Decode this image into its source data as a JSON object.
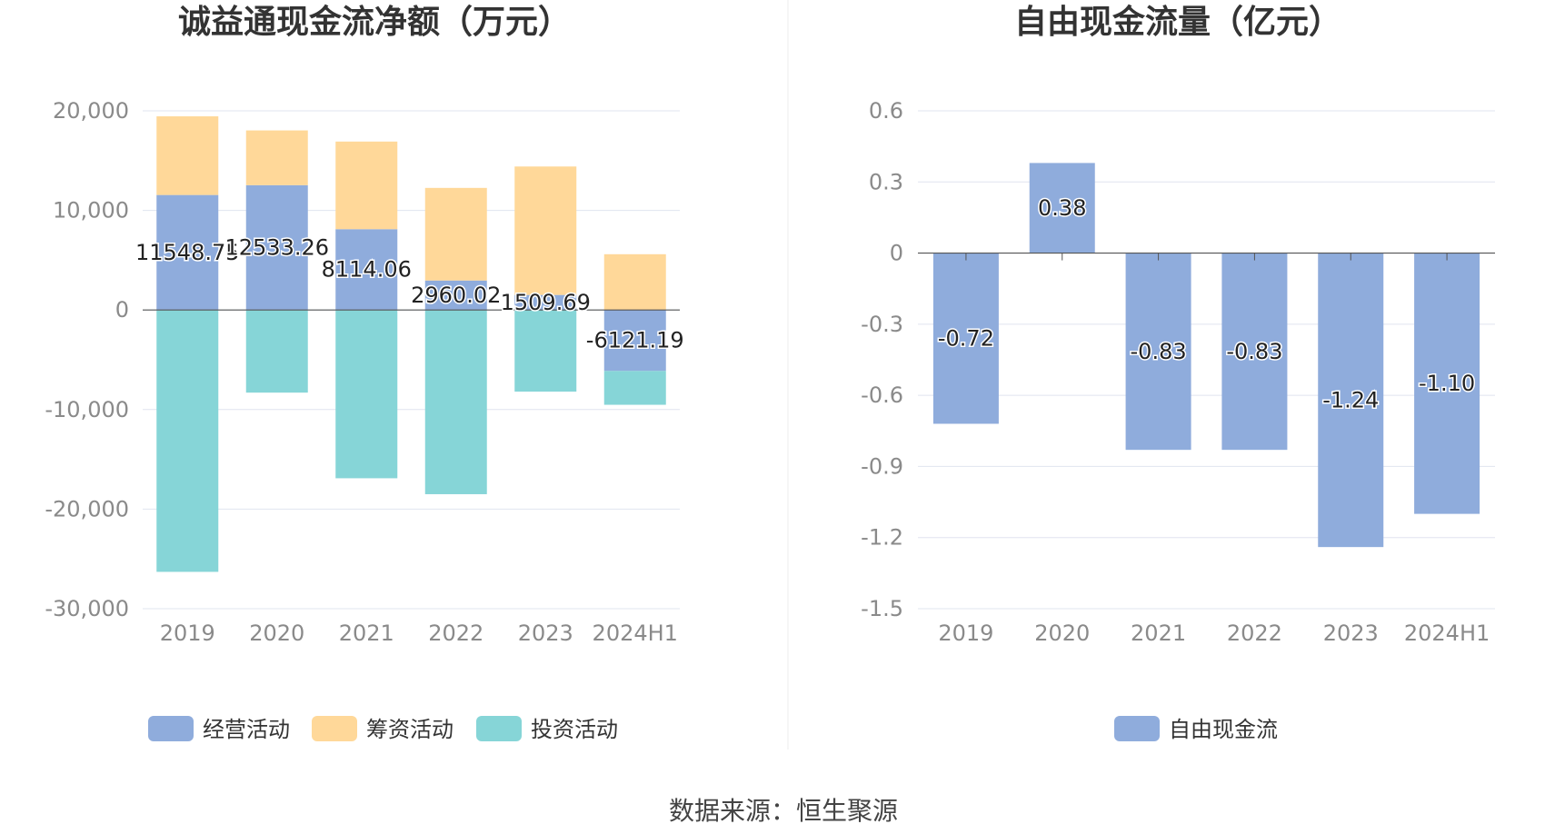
{
  "source_text": "数据来源：恒生聚源",
  "colors": {
    "operating": "#8facdc",
    "financing": "#ffd899",
    "investing": "#86d5d7",
    "fcf": "#8facdc",
    "grid": "#e0e4ef",
    "axis": "#555555"
  },
  "chart_data": [
    {
      "type": "bar",
      "stacked": true,
      "title": "诚益通现金流净额（万元）",
      "categories": [
        "2019",
        "2020",
        "2021",
        "2022",
        "2023",
        "2024H1"
      ],
      "ylim": [
        -30000,
        20000
      ],
      "yticks": [
        20000,
        10000,
        0,
        -10000,
        -20000,
        -30000
      ],
      "ytick_labels": [
        "20,000",
        "10,000",
        "0",
        "-10,000",
        "-20,000",
        "-30,000"
      ],
      "series": [
        {
          "name": "经营活动",
          "key": "operating",
          "values": [
            11548.75,
            12533.26,
            8114.06,
            2960.02,
            1509.69,
            -6121.19
          ]
        },
        {
          "name": "筹资活动",
          "key": "financing",
          "values": [
            7900,
            5500,
            8800,
            9300,
            12900,
            5600
          ]
        },
        {
          "name": "投资活动",
          "key": "investing",
          "values": [
            -26300,
            -8300,
            -16900,
            -18500,
            -8200,
            -3400
          ]
        }
      ],
      "data_labels": [
        "11548.75",
        "12533.26",
        "8114.06",
        "2960.02",
        "1509.69",
        "-6121.19"
      ],
      "legend": [
        {
          "name": "经营活动",
          "key": "operating"
        },
        {
          "name": "筹资活动",
          "key": "financing"
        },
        {
          "name": "投资活动",
          "key": "investing"
        }
      ],
      "legend_position": "bottom"
    },
    {
      "type": "bar",
      "title": "自由现金流量（亿元）",
      "categories": [
        "2019",
        "2020",
        "2021",
        "2022",
        "2023",
        "2024H1"
      ],
      "ylim": [
        -1.5,
        0.6
      ],
      "yticks": [
        0.6,
        0.3,
        0,
        -0.3,
        -0.6,
        -0.9,
        -1.2,
        -1.5
      ],
      "ytick_labels": [
        "0.6",
        "0.3",
        "0",
        "-0.3",
        "-0.6",
        "-0.9",
        "-1.2",
        "-1.5"
      ],
      "series": [
        {
          "name": "自由现金流",
          "key": "fcf",
          "values": [
            -0.72,
            0.38,
            -0.83,
            -0.83,
            -1.24,
            -1.1
          ]
        }
      ],
      "data_labels": [
        "-0.72",
        "0.38",
        "-0.83",
        "-0.83",
        "-1.24",
        "-1.10"
      ],
      "legend": [
        {
          "name": "自由现金流",
          "key": "fcf"
        }
      ],
      "legend_position": "bottom"
    }
  ]
}
